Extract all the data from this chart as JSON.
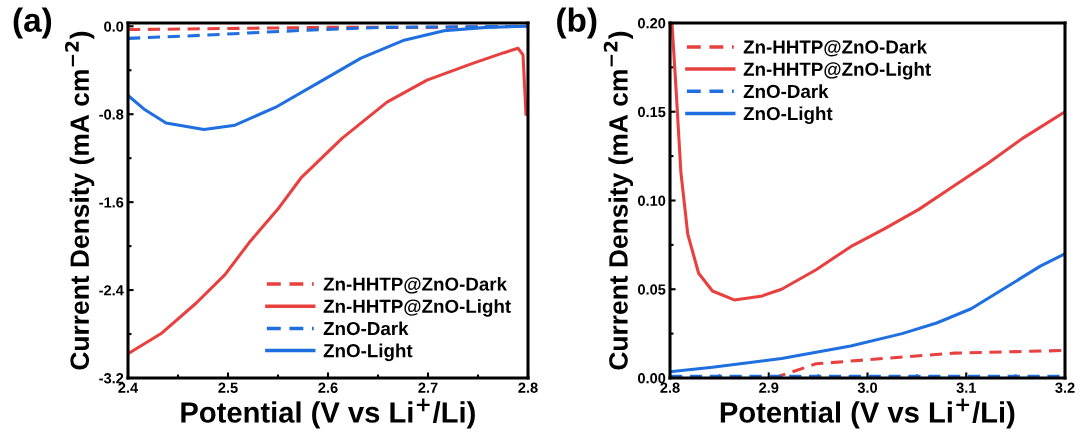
{
  "chart_data": [
    {
      "type": "line",
      "title": "(a)",
      "xlabel": "Potential (V vs Li$^{+}$/Li)",
      "ylabel": "Current Density (mA cm$^{−2}$)",
      "xlim": [
        2.4,
        2.8
      ],
      "xticks": [
        2.4,
        2.5,
        2.6,
        2.7,
        2.8
      ],
      "ylim": [
        -3.2,
        0.03
      ],
      "yticks": [
        {
          "value": 0,
          "label": "0.0"
        },
        -0.8,
        -1.6,
        -2.4,
        -3.2
      ],
      "legend": "bottom right",
      "grid": false,
      "series": [
        {
          "name": "Zn-HHTP@ZnO-Dark",
          "color": "#e8403e",
          "line_style": "dashed",
          "x": [
            2.4,
            2.5,
            2.6,
            2.7,
            2.8
          ],
          "values": [
            -0.03,
            -0.02,
            -0.01,
            -0.01,
            0
          ]
        },
        {
          "name": "Zn-HHTP@ZnO-Light",
          "color": "#e8403e",
          "line_style": "solid",
          "x": [
            2.4,
            2.434,
            2.468,
            2.497,
            2.521,
            2.551,
            2.573,
            2.614,
            2.659,
            2.699,
            2.744,
            2.776,
            2.79,
            2.795,
            2.798
          ],
          "values": [
            -2.98,
            -2.79,
            -2.52,
            -2.26,
            -1.97,
            -1.65,
            -1.38,
            -1.02,
            -0.69,
            -0.49,
            -0.34,
            -0.24,
            -0.2,
            -0.26,
            -0.8
          ]
        },
        {
          "name": "ZnO-Dark",
          "color": "#1f6fe0",
          "line_style": "dashed",
          "x": [
            2.4,
            2.479,
            2.567,
            2.654,
            2.8
          ],
          "values": [
            -0.11,
            -0.08,
            -0.04,
            -0.01,
            0
          ]
        },
        {
          "name": "ZnO-Light",
          "color": "#1f6fe0",
          "line_style": "solid",
          "x": [
            2.4,
            2.417,
            2.438,
            2.476,
            2.507,
            2.549,
            2.591,
            2.633,
            2.675,
            2.716,
            2.758,
            2.8
          ],
          "values": [
            -0.63,
            -0.76,
            -0.88,
            -0.94,
            -0.9,
            -0.73,
            -0.51,
            -0.29,
            -0.13,
            -0.04,
            -0.01,
            0
          ]
        }
      ]
    },
    {
      "type": "line",
      "title": "(b)",
      "xlabel": "Potential (V vs Li$^{+}$/Li)",
      "ylabel": "Current Density (mA cm$^{−2}$)",
      "xlim": [
        2.8,
        3.2
      ],
      "xticks": [
        2.8,
        2.9,
        {
          "value": 3.0,
          "label": "3.0"
        },
        3.1,
        3.2
      ],
      "ylim": [
        0,
        0.2
      ],
      "yticks": [
        {
          "value": 0,
          "label": "0.00"
        },
        0.05,
        {
          "value": 0.1,
          "label": "0.10"
        },
        0.15,
        {
          "value": 0.2,
          "label": "0.20"
        }
      ],
      "legend": "top left",
      "grid": false,
      "series": [
        {
          "name": "Zn-HHTP@ZnO-Dark",
          "color": "#e8403e",
          "line_style": "dashed",
          "x": [
            2.905,
            2.948,
            3.017,
            3.087,
            3.2
          ],
          "values": [
            0,
            0.008,
            0.011,
            0.014,
            0.0155
          ]
        },
        {
          "name": "Zn-HHTP@ZnO-Light",
          "color": "#e8403e",
          "line_style": "solid",
          "x": [
            2.802,
            2.806,
            2.811,
            2.818,
            2.829,
            2.843,
            2.865,
            2.892,
            2.913,
            2.948,
            2.983,
            3.017,
            3.052,
            3.087,
            3.122,
            3.157,
            3.2
          ],
          "values": [
            0.2,
            0.164,
            0.116,
            0.081,
            0.059,
            0.049,
            0.044,
            0.046,
            0.05,
            0.061,
            0.074,
            0.084,
            0.095,
            0.108,
            0.121,
            0.135,
            0.15
          ]
        },
        {
          "name": "ZnO-Dark",
          "color": "#1f6fe0",
          "line_style": "dashed",
          "x": [
            2.8,
            3.0,
            3.2
          ],
          "values": [
            0.001,
            0.001,
            0.001
          ]
        },
        {
          "name": "ZnO-Light",
          "color": "#1f6fe0",
          "line_style": "solid",
          "x": [
            2.8,
            2.843,
            2.913,
            2.983,
            3.035,
            3.07,
            3.105,
            3.14,
            3.175,
            3.2
          ],
          "values": [
            0.0035,
            0.006,
            0.011,
            0.018,
            0.025,
            0.031,
            0.039,
            0.051,
            0.063,
            0.07
          ]
        }
      ]
    }
  ]
}
